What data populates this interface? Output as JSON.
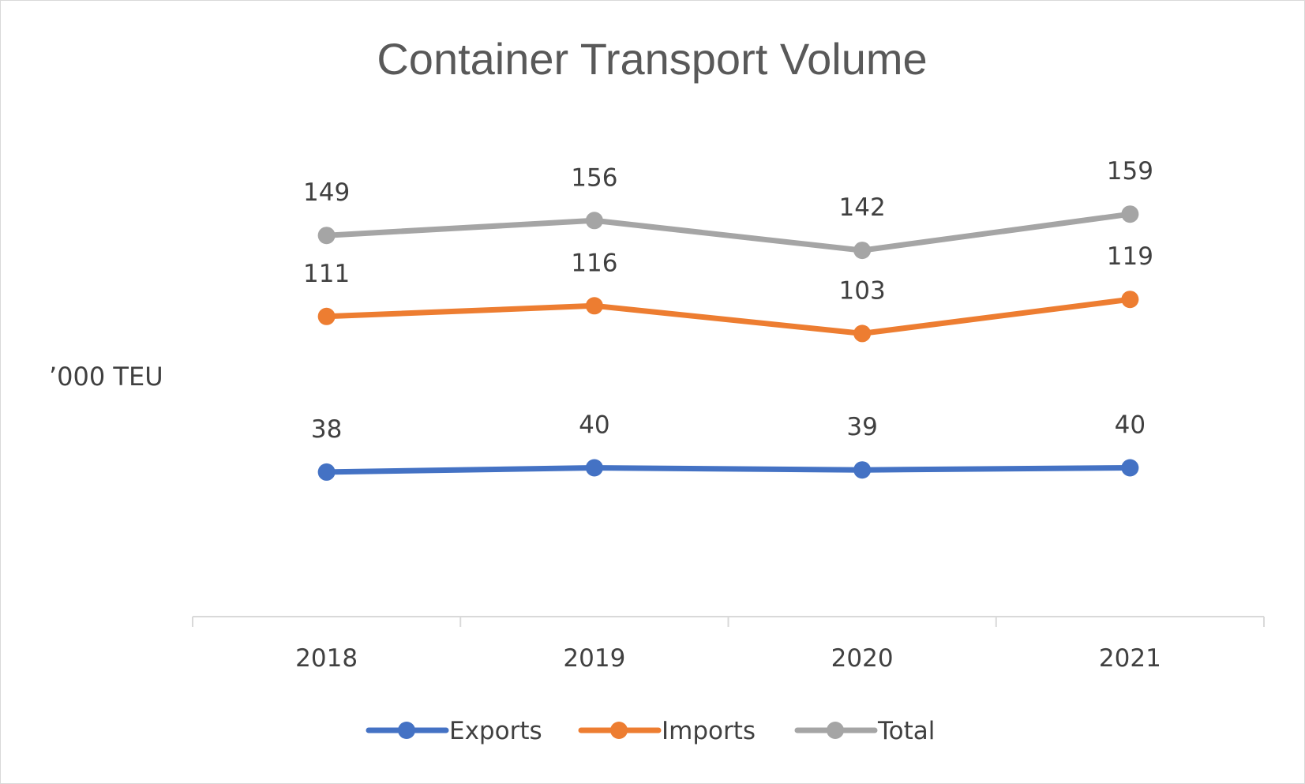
{
  "chart_data": {
    "type": "line",
    "title": "Container Transport Volume",
    "xlabel": "",
    "ylabel": "’000 TEU",
    "categories": [
      "2018",
      "2019",
      "2020",
      "2021"
    ],
    "series": [
      {
        "name": "Exports",
        "values": [
          38,
          40,
          39,
          40
        ],
        "color": "#4472c4"
      },
      {
        "name": "Imports",
        "values": [
          111,
          116,
          103,
          119
        ],
        "color": "#ed7d31"
      },
      {
        "name": "Total",
        "values": [
          149,
          156,
          142,
          159
        ],
        "color": "#a5a5a5"
      }
    ],
    "legend_position": "bottom",
    "grid": false,
    "data_labels": true
  }
}
